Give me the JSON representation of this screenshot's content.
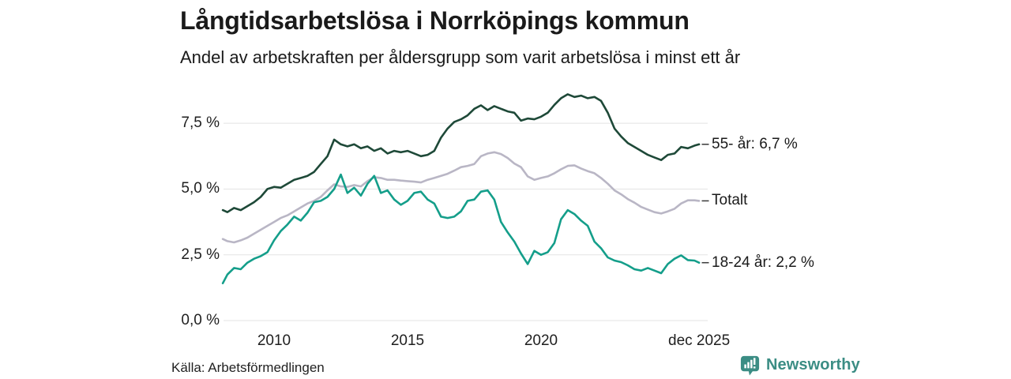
{
  "footer": {
    "source": "Källa: Arbetsförmedlingen",
    "brand": "Newsworthy"
  },
  "colors": {
    "grid": "#e3e3e3",
    "tick_dash": "#3a3a3a",
    "text": "#1a1a1a",
    "brand_teal": "#3b8d84",
    "series_55": "#1e4938",
    "series_totalt": "#b9b6c5",
    "series_1824": "#149e8a"
  },
  "chart_data": {
    "type": "line",
    "title": "Långtidsarbetslösa i Norrköpings kommun",
    "subtitle": "Andel av arbetskraften per åldersgrupp som varit arbetslösa i minst ett år",
    "x_unit": "year (monthly share of labour force, per cent)",
    "xlim": [
      2008.08,
      2025.92
    ],
    "ylim": [
      0,
      8.9
    ],
    "grid": "horizontal-only",
    "legend_position": "right of line ends",
    "yticks": [
      {
        "v": 0,
        "label": "0,0 %"
      },
      {
        "v": 2.5,
        "label": "2,5 %"
      },
      {
        "v": 5,
        "label": "5,0 %"
      },
      {
        "v": 7.5,
        "label": "7,5 %"
      }
    ],
    "xticks": [
      {
        "v": 2010,
        "label": "2010"
      },
      {
        "v": 2015,
        "label": "2015"
      },
      {
        "v": 2020,
        "label": "2020"
      },
      {
        "v": 2025.92,
        "label": "dec 2025"
      }
    ],
    "series": [
      {
        "name": "Totalt",
        "end_label": "Totalt",
        "end_value": 4.55,
        "color": "#b9b6c5",
        "points": [
          [
            2008.08,
            3.1
          ],
          [
            2008.25,
            3.02
          ],
          [
            2008.5,
            2.97
          ],
          [
            2008.75,
            3.05
          ],
          [
            2009,
            3.15
          ],
          [
            2009.25,
            3.3
          ],
          [
            2009.5,
            3.45
          ],
          [
            2009.75,
            3.6
          ],
          [
            2010,
            3.75
          ],
          [
            2010.25,
            3.9
          ],
          [
            2010.5,
            4.0
          ],
          [
            2010.75,
            4.15
          ],
          [
            2011,
            4.3
          ],
          [
            2011.25,
            4.45
          ],
          [
            2011.5,
            4.55
          ],
          [
            2011.75,
            4.7
          ],
          [
            2012,
            4.95
          ],
          [
            2012.25,
            5.18
          ],
          [
            2012.5,
            5.1
          ],
          [
            2012.75,
            5.08
          ],
          [
            2013,
            5.15
          ],
          [
            2013.25,
            5.1
          ],
          [
            2013.5,
            5.3
          ],
          [
            2013.75,
            5.45
          ],
          [
            2014,
            5.42
          ],
          [
            2014.25,
            5.35
          ],
          [
            2014.5,
            5.35
          ],
          [
            2014.75,
            5.32
          ],
          [
            2015,
            5.3
          ],
          [
            2015.25,
            5.28
          ],
          [
            2015.5,
            5.25
          ],
          [
            2015.75,
            5.35
          ],
          [
            2016,
            5.42
          ],
          [
            2016.25,
            5.5
          ],
          [
            2016.5,
            5.58
          ],
          [
            2016.75,
            5.7
          ],
          [
            2017,
            5.83
          ],
          [
            2017.25,
            5.88
          ],
          [
            2017.5,
            5.95
          ],
          [
            2017.75,
            6.25
          ],
          [
            2018,
            6.35
          ],
          [
            2018.25,
            6.4
          ],
          [
            2018.5,
            6.33
          ],
          [
            2018.75,
            6.18
          ],
          [
            2019,
            5.97
          ],
          [
            2019.25,
            5.83
          ],
          [
            2019.5,
            5.48
          ],
          [
            2019.75,
            5.35
          ],
          [
            2020,
            5.42
          ],
          [
            2020.25,
            5.48
          ],
          [
            2020.5,
            5.6
          ],
          [
            2020.75,
            5.75
          ],
          [
            2021,
            5.88
          ],
          [
            2021.25,
            5.9
          ],
          [
            2021.5,
            5.78
          ],
          [
            2021.75,
            5.68
          ],
          [
            2022,
            5.6
          ],
          [
            2022.25,
            5.42
          ],
          [
            2022.5,
            5.2
          ],
          [
            2022.75,
            4.95
          ],
          [
            2023,
            4.8
          ],
          [
            2023.25,
            4.62
          ],
          [
            2023.5,
            4.48
          ],
          [
            2023.75,
            4.32
          ],
          [
            2024,
            4.22
          ],
          [
            2024.25,
            4.12
          ],
          [
            2024.5,
            4.07
          ],
          [
            2024.75,
            4.15
          ],
          [
            2025,
            4.25
          ],
          [
            2025.25,
            4.45
          ],
          [
            2025.5,
            4.57
          ],
          [
            2025.75,
            4.57
          ],
          [
            2025.92,
            4.55
          ]
        ]
      },
      {
        "name": "55- år",
        "end_label": "55- år: 6,7 %",
        "end_value": 6.7,
        "color": "#1e4938",
        "points": [
          [
            2008.08,
            4.2
          ],
          [
            2008.25,
            4.12
          ],
          [
            2008.5,
            4.28
          ],
          [
            2008.75,
            4.2
          ],
          [
            2009,
            4.35
          ],
          [
            2009.25,
            4.5
          ],
          [
            2009.5,
            4.7
          ],
          [
            2009.75,
            5.0
          ],
          [
            2010,
            5.08
          ],
          [
            2010.25,
            5.05
          ],
          [
            2010.5,
            5.2
          ],
          [
            2010.75,
            5.35
          ],
          [
            2011,
            5.42
          ],
          [
            2011.25,
            5.5
          ],
          [
            2011.5,
            5.65
          ],
          [
            2011.75,
            5.95
          ],
          [
            2012,
            6.25
          ],
          [
            2012.25,
            6.88
          ],
          [
            2012.5,
            6.7
          ],
          [
            2012.75,
            6.62
          ],
          [
            2013,
            6.7
          ],
          [
            2013.25,
            6.55
          ],
          [
            2013.5,
            6.62
          ],
          [
            2013.75,
            6.45
          ],
          [
            2014,
            6.55
          ],
          [
            2014.25,
            6.35
          ],
          [
            2014.5,
            6.45
          ],
          [
            2014.75,
            6.4
          ],
          [
            2015,
            6.45
          ],
          [
            2015.25,
            6.35
          ],
          [
            2015.5,
            6.25
          ],
          [
            2015.75,
            6.3
          ],
          [
            2016,
            6.45
          ],
          [
            2016.25,
            6.95
          ],
          [
            2016.5,
            7.3
          ],
          [
            2016.75,
            7.55
          ],
          [
            2017,
            7.65
          ],
          [
            2017.25,
            7.8
          ],
          [
            2017.5,
            8.05
          ],
          [
            2017.75,
            8.18
          ],
          [
            2018,
            8.0
          ],
          [
            2018.25,
            8.15
          ],
          [
            2018.5,
            8.05
          ],
          [
            2018.75,
            7.95
          ],
          [
            2019,
            7.9
          ],
          [
            2019.25,
            7.6
          ],
          [
            2019.5,
            7.68
          ],
          [
            2019.75,
            7.65
          ],
          [
            2020,
            7.75
          ],
          [
            2020.25,
            7.9
          ],
          [
            2020.5,
            8.2
          ],
          [
            2020.75,
            8.45
          ],
          [
            2021,
            8.6
          ],
          [
            2021.25,
            8.5
          ],
          [
            2021.5,
            8.55
          ],
          [
            2021.75,
            8.45
          ],
          [
            2022,
            8.5
          ],
          [
            2022.25,
            8.35
          ],
          [
            2022.5,
            7.9
          ],
          [
            2022.75,
            7.3
          ],
          [
            2023,
            7.0
          ],
          [
            2023.25,
            6.75
          ],
          [
            2023.5,
            6.6
          ],
          [
            2023.75,
            6.45
          ],
          [
            2024,
            6.3
          ],
          [
            2024.25,
            6.2
          ],
          [
            2024.5,
            6.1
          ],
          [
            2024.75,
            6.3
          ],
          [
            2025,
            6.35
          ],
          [
            2025.25,
            6.6
          ],
          [
            2025.5,
            6.55
          ],
          [
            2025.75,
            6.65
          ],
          [
            2025.92,
            6.7
          ]
        ]
      },
      {
        "name": "18-24 år",
        "end_label": "18-24 år: 2,2 %",
        "end_value": 2.2,
        "color": "#149e8a",
        "points": [
          [
            2008.08,
            1.42
          ],
          [
            2008.25,
            1.75
          ],
          [
            2008.5,
            2.0
          ],
          [
            2008.75,
            1.95
          ],
          [
            2009,
            2.2
          ],
          [
            2009.25,
            2.35
          ],
          [
            2009.5,
            2.45
          ],
          [
            2009.75,
            2.6
          ],
          [
            2010,
            3.05
          ],
          [
            2010.25,
            3.4
          ],
          [
            2010.5,
            3.65
          ],
          [
            2010.75,
            3.95
          ],
          [
            2011,
            3.8
          ],
          [
            2011.25,
            4.1
          ],
          [
            2011.5,
            4.5
          ],
          [
            2011.75,
            4.55
          ],
          [
            2012,
            4.7
          ],
          [
            2012.25,
            5.0
          ],
          [
            2012.5,
            5.55
          ],
          [
            2012.75,
            4.85
          ],
          [
            2013,
            5.05
          ],
          [
            2013.25,
            4.75
          ],
          [
            2013.5,
            5.2
          ],
          [
            2013.75,
            5.5
          ],
          [
            2014,
            4.85
          ],
          [
            2014.25,
            4.95
          ],
          [
            2014.5,
            4.6
          ],
          [
            2014.75,
            4.4
          ],
          [
            2015,
            4.55
          ],
          [
            2015.25,
            4.85
          ],
          [
            2015.5,
            4.9
          ],
          [
            2015.75,
            4.6
          ],
          [
            2016,
            4.45
          ],
          [
            2016.25,
            3.95
          ],
          [
            2016.5,
            3.9
          ],
          [
            2016.75,
            3.95
          ],
          [
            2017,
            4.15
          ],
          [
            2017.25,
            4.55
          ],
          [
            2017.5,
            4.6
          ],
          [
            2017.75,
            4.9
          ],
          [
            2018,
            4.95
          ],
          [
            2018.25,
            4.6
          ],
          [
            2018.5,
            3.75
          ],
          [
            2018.75,
            3.35
          ],
          [
            2019,
            3.0
          ],
          [
            2019.25,
            2.55
          ],
          [
            2019.5,
            2.15
          ],
          [
            2019.75,
            2.65
          ],
          [
            2020,
            2.5
          ],
          [
            2020.25,
            2.6
          ],
          [
            2020.5,
            2.95
          ],
          [
            2020.75,
            3.85
          ],
          [
            2021,
            4.2
          ],
          [
            2021.25,
            4.05
          ],
          [
            2021.5,
            3.8
          ],
          [
            2021.75,
            3.6
          ],
          [
            2022,
            3.0
          ],
          [
            2022.25,
            2.75
          ],
          [
            2022.5,
            2.4
          ],
          [
            2022.75,
            2.28
          ],
          [
            2023,
            2.22
          ],
          [
            2023.25,
            2.1
          ],
          [
            2023.5,
            1.95
          ],
          [
            2023.75,
            1.9
          ],
          [
            2024,
            2.0
          ],
          [
            2024.25,
            1.9
          ],
          [
            2024.5,
            1.8
          ],
          [
            2024.75,
            2.15
          ],
          [
            2025,
            2.35
          ],
          [
            2025.25,
            2.48
          ],
          [
            2025.5,
            2.3
          ],
          [
            2025.75,
            2.28
          ],
          [
            2025.92,
            2.2
          ]
        ]
      }
    ]
  }
}
